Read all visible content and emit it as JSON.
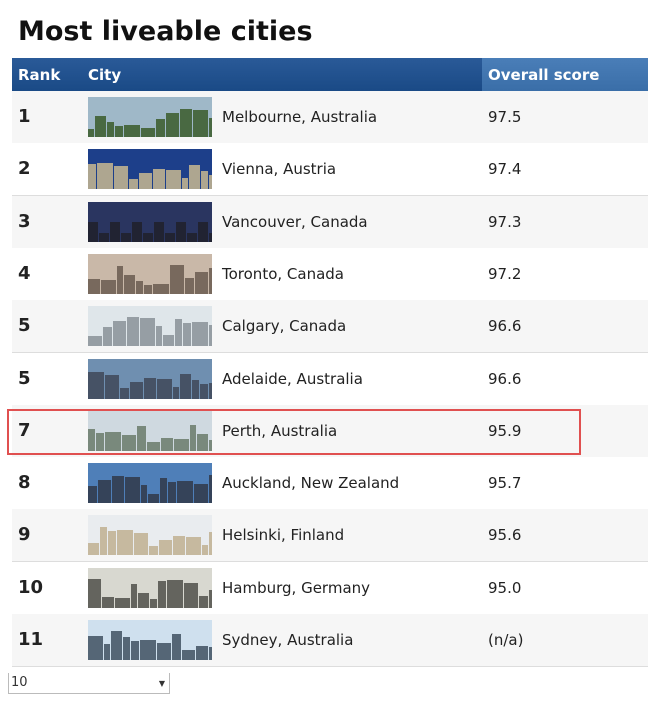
{
  "header": {
    "title": "Most liveable cities"
  },
  "table": {
    "columns": [
      "Rank",
      "City",
      "Overall score"
    ],
    "rows": [
      [
        "1",
        "Melbourne, Australia",
        "97.5"
      ],
      [
        "2",
        "Vienna, Austria",
        "97.4"
      ],
      [
        "3",
        "Vancouver, Canada",
        "97.3"
      ],
      [
        "4",
        "Toronto, Canada",
        "97.2"
      ],
      [
        "5",
        "Calgary, Canada",
        "96.6"
      ],
      [
        "5",
        "Adelaide, Australia",
        "96.6"
      ],
      [
        "7",
        "Perth, Australia",
        "95.9"
      ],
      [
        "8",
        "Auckland, New Zealand",
        "95.7"
      ],
      [
        "9",
        "Helsinki, Finland",
        "95.6"
      ],
      [
        "10",
        "Hamburg, Germany",
        "95.0"
      ],
      [
        "11",
        "Sydney, Australia",
        "(n/a)"
      ]
    ]
  },
  "pagination": {
    "page_size": "10"
  }
}
